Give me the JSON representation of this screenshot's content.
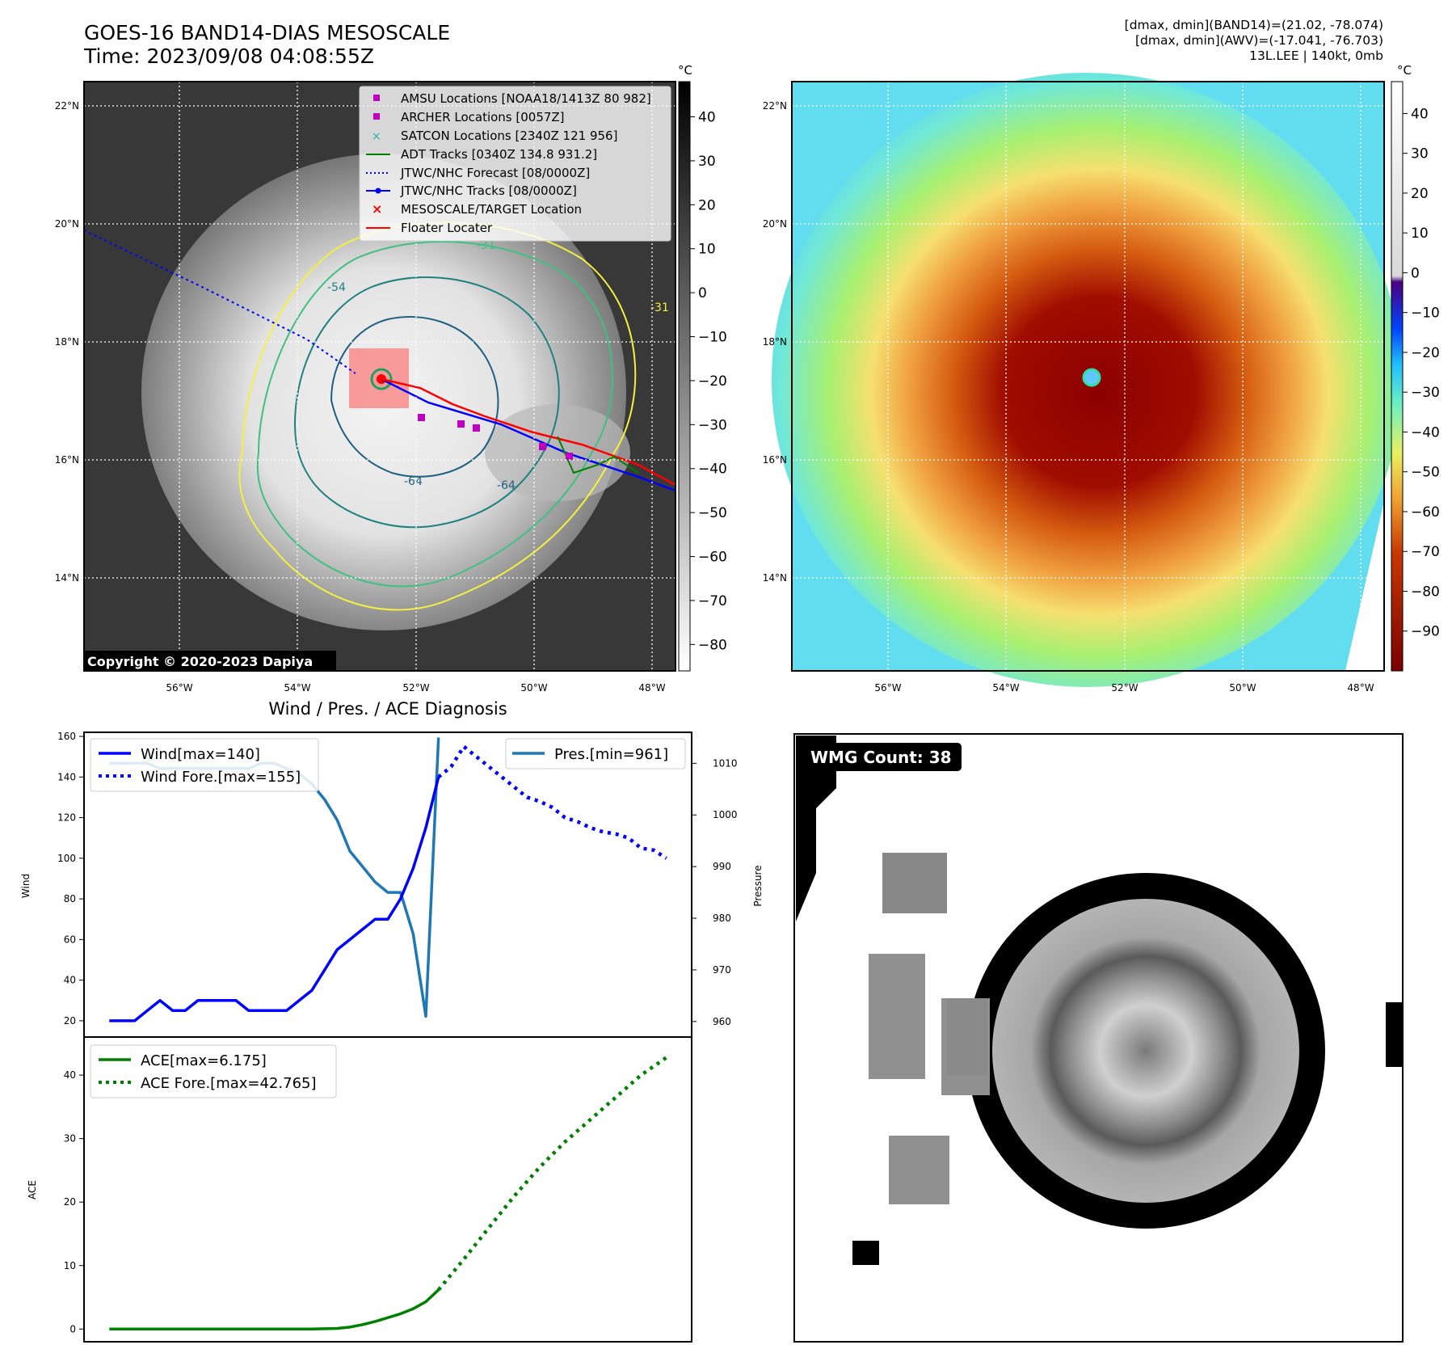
{
  "header": {
    "title": "GOES-16 BAND14-DIAS MESOSCALE",
    "time": "Time: 2023/09/08 04:08:55Z",
    "info_lines": [
      "[dmax, dmin](BAND14)=(21.02, -78.074)",
      "[dmax, dmin](AWV)=(-17.041, -76.703)",
      "13L.LEE | 140kt, 0mb"
    ]
  },
  "map_axes": {
    "lon_labels": [
      "56°W",
      "54°W",
      "52°W",
      "50°W",
      "48°W"
    ],
    "lon_values": [
      -56,
      -54,
      -52,
      -50,
      -48
    ],
    "lat_labels": [
      "22°N",
      "20°N",
      "18°N",
      "16°N",
      "14°N"
    ],
    "lat_values": [
      22,
      20,
      18,
      16,
      14
    ]
  },
  "panel1": {
    "legend": [
      {
        "label": "AMSU Locations [NOAA18/1413Z 80 982]",
        "color": "#c000c0",
        "marker": "square"
      },
      {
        "label": "ARCHER Locations [0057Z]",
        "color": "#c000c0",
        "marker": "square"
      },
      {
        "label": "SATCON Locations [2340Z 121 956]",
        "color": "#20b2aa",
        "marker": "x"
      },
      {
        "label": "ADT Tracks [0340Z 134.8 931.2]",
        "color": "#008000",
        "marker": "line"
      },
      {
        "label": "JTWC/NHC Forecast [08/0000Z]",
        "color": "#0000ff",
        "marker": "dotted"
      },
      {
        "label": "JTWC/NHC Tracks [08/0000Z]",
        "color": "#0000ff",
        "marker": "line-dot"
      },
      {
        "label": "MESOSCALE/TARGET Location",
        "color": "#ff0000",
        "marker": "x"
      },
      {
        "label": "Floater Locater",
        "color": "#ff0000",
        "marker": "line"
      }
    ],
    "copyright": "Copyright © 2020-2023 Dapiya",
    "colorbar_unit": "°C",
    "colorbar_ticks": [
      "40",
      "30",
      "20",
      "10",
      "0",
      "−10",
      "−20",
      "−30",
      "−40",
      "−50",
      "−60",
      "−70",
      "−80"
    ],
    "colorbar_values": [
      40,
      30,
      20,
      10,
      0,
      -10,
      -20,
      -30,
      -40,
      -50,
      -60,
      -70,
      -80
    ],
    "contour_labels": [
      "-31",
      "-54",
      "-64",
      "-64",
      "-31"
    ]
  },
  "panel2": {
    "colorbar_unit": "°C",
    "colorbar_ticks": [
      "40",
      "30",
      "20",
      "10",
      "0",
      "−10",
      "−20",
      "−30",
      "−40",
      "−50",
      "−60",
      "−70",
      "−80",
      "−90"
    ],
    "colorbar_values": [
      40,
      30,
      20,
      10,
      0,
      -10,
      -20,
      -30,
      -40,
      -50,
      -60,
      -70,
      -80,
      -90
    ]
  },
  "panel3": {
    "title": "Wind / Pres. / ACE Diagnosis",
    "wind_axis_label": "Wind",
    "pres_axis_label": "Pressure",
    "ace_axis_label": "ACE",
    "wind_ticks": [
      "20",
      "40",
      "60",
      "80",
      "100",
      "120",
      "140",
      "160"
    ],
    "pres_ticks": [
      "960",
      "970",
      "980",
      "990",
      "1000",
      "1010"
    ],
    "ace_ticks": [
      "0",
      "10",
      "20",
      "30",
      "40"
    ],
    "legend_wind": "Wind[max=140]",
    "legend_wind_fore": "Wind Fore.[max=155]",
    "legend_pres": "Pres.[min=961]",
    "legend_ace": "ACE[max=6.175]",
    "legend_ace_fore": "ACE Fore.[max=42.765]",
    "colors": {
      "wind": "#0000ff",
      "pres": "#1f77b4",
      "ace": "#008000"
    }
  },
  "panel4": {
    "badge": "WMG Count: 38"
  },
  "chart_data": [
    {
      "type": "line",
      "title": "Wind / Pres. / ACE Diagnosis",
      "ylabel": "Wind",
      "ylim": [
        12,
        162
      ],
      "series": [
        {
          "name": "Wind[max=140]",
          "x": [
            0,
            1,
            2,
            3,
            4,
            5,
            6,
            7,
            8,
            9,
            10,
            11,
            12,
            13,
            14,
            15,
            16,
            17,
            18,
            19,
            20,
            21,
            22,
            23,
            24,
            25,
            26
          ],
          "values": [
            20,
            20,
            20,
            25,
            30,
            25,
            25,
            30,
            30,
            30,
            30,
            25,
            25,
            25,
            25,
            30,
            35,
            45,
            55,
            60,
            65,
            70,
            70,
            80,
            95,
            115,
            140
          ]
        },
        {
          "name": "Wind Fore.[max=155]",
          "x": [
            26,
            27,
            28,
            29,
            30,
            31,
            32,
            33,
            34,
            35,
            36,
            37,
            38,
            39,
            40,
            41,
            42,
            43,
            44
          ],
          "values": [
            140,
            145,
            155,
            150,
            145,
            140,
            135,
            130,
            128,
            125,
            120,
            118,
            115,
            113,
            112,
            110,
            105,
            104,
            100
          ]
        }
      ]
    },
    {
      "type": "line",
      "ylabel": "Pressure",
      "ylim": [
        957,
        1016
      ],
      "series": [
        {
          "name": "Pres.[min=961]",
          "x": [
            0,
            1,
            2,
            3,
            4,
            5,
            6,
            7,
            8,
            9,
            10,
            11,
            12,
            13,
            14,
            15,
            16,
            17,
            18,
            19,
            20,
            21,
            22,
            23,
            24,
            25,
            26
          ],
          "values": [
            1010,
            1010,
            1010,
            1010,
            1009,
            1009,
            1009,
            1009,
            1009,
            1009,
            1009,
            1009,
            1010,
            1010,
            1009,
            1008,
            1006,
            1003,
            999,
            993,
            990,
            987,
            985,
            985,
            977,
            961,
            1015
          ]
        }
      ]
    },
    {
      "type": "line",
      "ylabel": "ACE",
      "ylim": [
        -2,
        46
      ],
      "series": [
        {
          "name": "ACE[max=6.175]",
          "x": [
            0,
            4,
            8,
            12,
            16,
            18,
            19,
            20,
            21,
            22,
            23,
            24,
            25,
            26
          ],
          "values": [
            0,
            0,
            0,
            0,
            0,
            0.1,
            0.3,
            0.7,
            1.2,
            1.8,
            2.4,
            3.2,
            4.3,
            6.175
          ]
        },
        {
          "name": "ACE Fore.[max=42.765]",
          "x": [
            26,
            28,
            30,
            32,
            34,
            36,
            38,
            40,
            42,
            44
          ],
          "values": [
            6.175,
            11,
            16,
            21,
            25.5,
            29.5,
            33,
            36.5,
            40,
            42.765
          ]
        }
      ]
    }
  ]
}
